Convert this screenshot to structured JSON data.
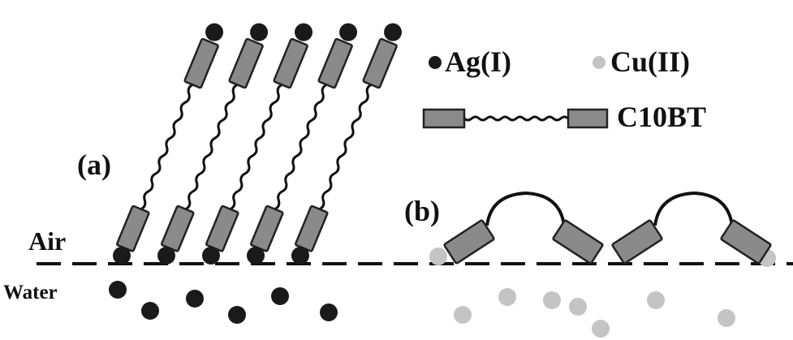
{
  "legend": {
    "silver": "Ag(I)",
    "copper": "Cu(II)",
    "ligand": "C10BT"
  },
  "panels": {
    "a": "(a)",
    "b": "(b)"
  },
  "phases": {
    "air": "Air",
    "water": "Water"
  }
}
